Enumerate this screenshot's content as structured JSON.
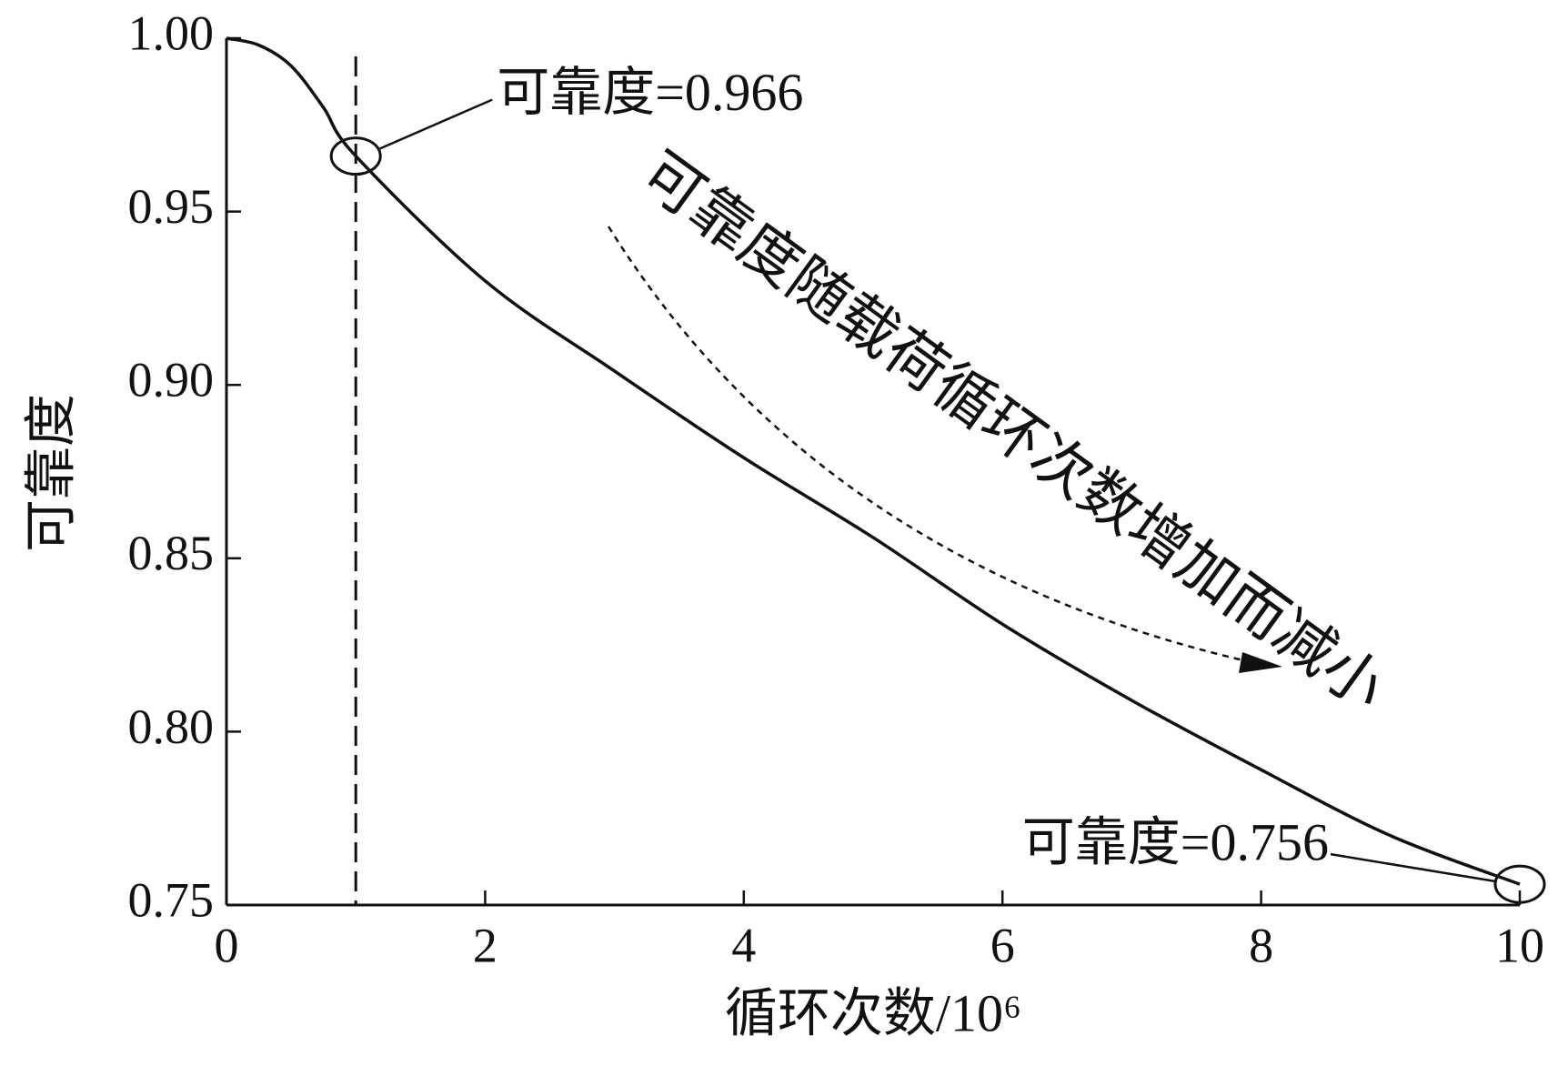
{
  "chart_data": {
    "type": "line",
    "xlabel": "循环次数/10⁶",
    "ylabel": "可靠度",
    "series": [
      {
        "name": "可靠度",
        "color": "#111111",
        "x": [
          0,
          0.25,
          0.5,
          0.75,
          1,
          2,
          3,
          4,
          5,
          6,
          7,
          8,
          9,
          10
        ],
        "values": [
          1.0,
          0.998,
          0.992,
          0.98,
          0.966,
          0.93,
          0.904,
          0.879,
          0.856,
          0.831,
          0.809,
          0.789,
          0.77,
          0.756
        ]
      }
    ],
    "xlim": [
      0,
      10
    ],
    "xticks": [
      0,
      2,
      4,
      6,
      8,
      10
    ],
    "ylim": [
      0.75,
      1.0
    ],
    "yticks": [
      {
        "value": 0.75,
        "label": "0.75"
      },
      {
        "value": 0.8,
        "label": "0.80"
      },
      {
        "value": 0.85,
        "label": "0.85"
      },
      {
        "value": 0.9,
        "label": "0.90"
      },
      {
        "value": 0.95,
        "label": "0.95"
      },
      {
        "value": 1.0,
        "label": "1.00"
      }
    ],
    "vline_x": 1,
    "annotations": [
      {
        "text": "可靠度=0.966",
        "x": 1,
        "y": 0.966
      },
      {
        "text": "可靠度=0.756",
        "x": 10,
        "y": 0.756
      }
    ],
    "trend_note": "可靠度随载荷循环次数增加而减小"
  }
}
